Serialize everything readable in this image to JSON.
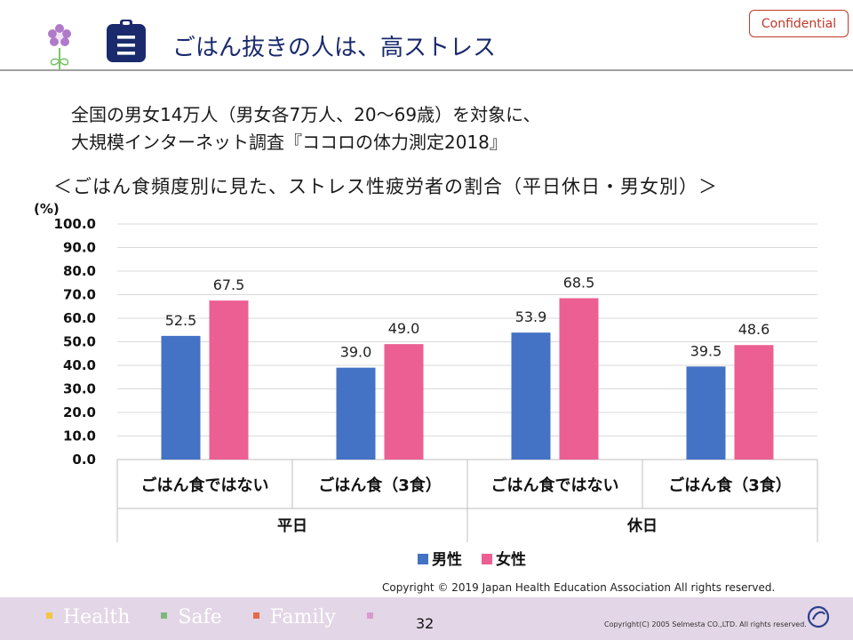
{
  "header": {
    "title": "ごはん抜きの人は、高ストレス",
    "confidential": "Confidential"
  },
  "intro": {
    "line1": "全国の男女14万人（男女各7万人、20～69歳）を対象に、",
    "line2": "大規模インターネット調査『ココロの体力測定2018』"
  },
  "chart_data": {
    "type": "bar",
    "title": "＜ごはん食頻度別に見た、ストレス性疲労者の割合（平日休日・男女別）＞",
    "ylabel": "(%)",
    "ylim": [
      0,
      100
    ],
    "yticks": [
      "0.0",
      "10.0",
      "20.0",
      "30.0",
      "40.0",
      "50.0",
      "60.0",
      "70.0",
      "80.0",
      "90.0",
      "100.0"
    ],
    "groups": [
      "平日",
      "休日"
    ],
    "categories": [
      "ごはん食ではない",
      "ごはん食（3食）",
      "ごはん食ではない",
      "ごはん食（3食）"
    ],
    "series": [
      {
        "name": "男性",
        "color": "#4472c4",
        "values": [
          52.5,
          39.0,
          53.9,
          39.5
        ],
        "labels": [
          "52.5",
          "39.0",
          "53.9",
          "39.5"
        ]
      },
      {
        "name": "女性",
        "color": "#ec5f92",
        "values": [
          67.5,
          49.0,
          68.5,
          48.6
        ],
        "labels": [
          "67.5",
          "49.0",
          "68.5",
          "48.6"
        ]
      }
    ],
    "grid": true,
    "legend": "bottom"
  },
  "copyright": "Copyright © 2019  Japan Health Education Association All rights reserved.",
  "footer": {
    "words": [
      "Health",
      "Safe",
      "Family"
    ],
    "square_colors": [
      "#f5c542",
      "#7fb77e",
      "#e8684a",
      "#d99ad0"
    ],
    "page": "32",
    "rights": "Copyright(C) 2005 Selmesta CO.,LTD.  All rights reserved."
  }
}
